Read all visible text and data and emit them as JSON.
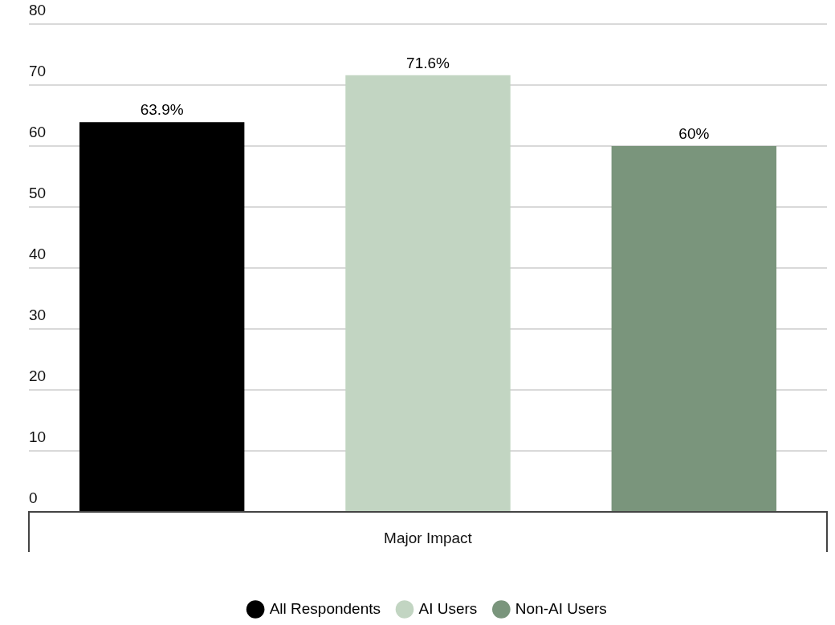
{
  "chart_data": {
    "type": "bar",
    "categories": [
      "Major Impact"
    ],
    "series": [
      {
        "name": "All Respondents",
        "color": "#000000",
        "values": [
          63.9
        ],
        "value_labels": [
          "63.9%"
        ]
      },
      {
        "name": "AI Users",
        "color": "#c2d5c2",
        "values": [
          71.6
        ],
        "value_labels": [
          "71.6%"
        ]
      },
      {
        "name": "Non-AI Users",
        "color": "#7a957c",
        "values": [
          60
        ],
        "value_labels": [
          "60%"
        ]
      }
    ],
    "ylim": [
      0,
      80
    ],
    "yticks": [
      0,
      10,
      20,
      30,
      40,
      50,
      60,
      70,
      80
    ],
    "grid": "y",
    "legend": "bottom"
  }
}
